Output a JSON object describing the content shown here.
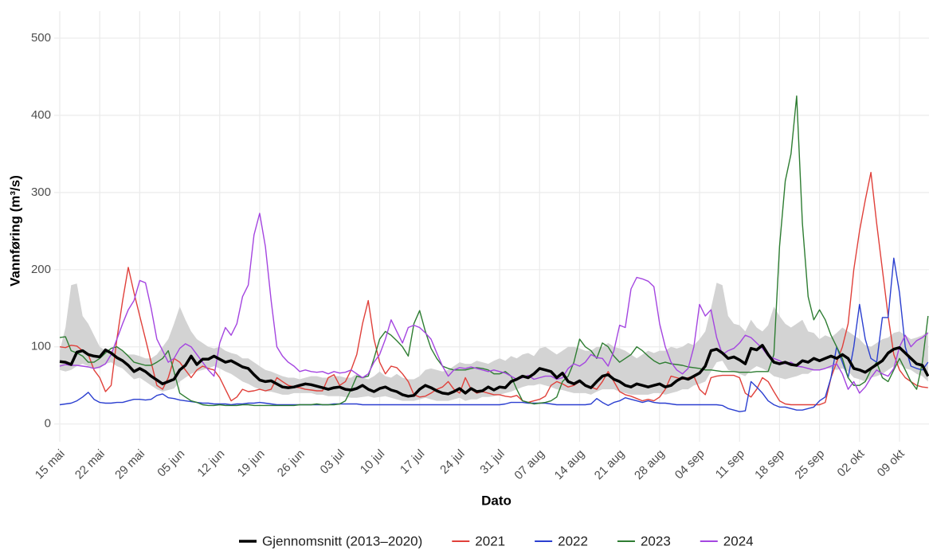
{
  "chart_data": {
    "type": "line",
    "ylabel": "Vannføring (m³/s)",
    "xlabel": "Dato",
    "categories": [
      "15 mai",
      null,
      null,
      null,
      null,
      null,
      null,
      "22 mai",
      null,
      null,
      null,
      null,
      null,
      null,
      "29 mai",
      null,
      null,
      null,
      null,
      null,
      null,
      "05 jun",
      null,
      null,
      null,
      null,
      null,
      null,
      "12 jun",
      null,
      null,
      null,
      null,
      null,
      null,
      "19 jun",
      null,
      null,
      null,
      null,
      null,
      null,
      "26 jun",
      null,
      null,
      null,
      null,
      null,
      null,
      "03 jul",
      null,
      null,
      null,
      null,
      null,
      null,
      "10 jul",
      null,
      null,
      null,
      null,
      null,
      null,
      "17 jul",
      null,
      null,
      null,
      null,
      null,
      null,
      "24 jul",
      null,
      null,
      null,
      null,
      null,
      null,
      "31 jul",
      null,
      null,
      null,
      null,
      null,
      null,
      "07 aug",
      null,
      null,
      null,
      null,
      null,
      null,
      "14 aug",
      null,
      null,
      null,
      null,
      null,
      null,
      "21 aug",
      null,
      null,
      null,
      null,
      null,
      null,
      "28 aug",
      null,
      null,
      null,
      null,
      null,
      null,
      "04 sep",
      null,
      null,
      null,
      null,
      null,
      null,
      "11 sep",
      null,
      null,
      null,
      null,
      null,
      null,
      "18 sep",
      null,
      null,
      null,
      null,
      null,
      null,
      "25 sep",
      null,
      null,
      null,
      null,
      null,
      null,
      "02 okt",
      null,
      null,
      null,
      null,
      null,
      null,
      "09 okt",
      null,
      null,
      null,
      null,
      null
    ],
    "ylim": [
      -23,
      535
    ],
    "yticks": [
      0,
      100,
      200,
      300,
      400,
      500
    ],
    "grid": true,
    "band": {
      "color": "#d3d3d3",
      "upper": [
        95,
        125,
        180,
        182,
        140,
        130,
        115,
        100,
        95,
        95,
        100,
        95,
        90,
        90,
        88,
        85,
        85,
        90,
        100,
        110,
        130,
        152,
        135,
        120,
        110,
        105,
        100,
        98,
        100,
        95,
        92,
        90,
        85,
        85,
        80,
        75,
        70,
        68,
        65,
        62,
        60,
        60,
        58,
        60,
        62,
        62,
        60,
        60,
        62,
        62,
        60,
        60,
        65,
        60,
        58,
        62,
        68,
        62,
        60,
        65,
        60,
        58,
        58,
        62,
        70,
        72,
        70,
        68,
        70,
        75,
        80,
        78,
        78,
        82,
        80,
        78,
        82,
        85,
        82,
        88,
        85,
        90,
        92,
        88,
        98,
        100,
        95,
        90,
        95,
        100,
        100,
        98,
        95,
        95,
        100,
        100,
        105,
        100,
        98,
        95,
        90,
        85,
        90,
        95,
        92,
        95,
        95,
        100,
        98,
        100,
        105,
        102,
        110,
        120,
        150,
        183,
        180,
        140,
        130,
        128,
        120,
        135,
        125,
        120,
        128,
        152,
        140,
        130,
        125,
        130,
        135,
        120,
        118,
        110,
        115,
        112,
        118,
        125,
        120,
        115,
        110,
        102,
        100,
        105,
        110,
        112,
        118,
        120,
        115,
        110,
        112,
        115,
        120
      ],
      "lower": [
        70,
        68,
        70,
        75,
        78,
        75,
        72,
        72,
        78,
        80,
        75,
        72,
        65,
        58,
        60,
        55,
        50,
        45,
        42,
        44,
        46,
        55,
        60,
        65,
        68,
        70,
        72,
        75,
        72,
        68,
        65,
        60,
        55,
        52,
        48,
        45,
        42,
        42,
        40,
        38,
        38,
        40,
        40,
        40,
        40,
        38,
        38,
        36,
        36,
        36,
        35,
        34,
        34,
        35,
        36,
        34,
        35,
        36,
        34,
        32,
        30,
        30,
        30,
        32,
        34,
        32,
        30,
        30,
        30,
        32,
        34,
        30,
        32,
        32,
        35,
        35,
        36,
        38,
        40,
        42,
        45,
        48,
        50,
        50,
        52,
        50,
        48,
        45,
        44,
        42,
        40,
        40,
        40,
        38,
        42,
        45,
        45,
        45,
        42,
        40,
        38,
        38,
        38,
        38,
        40,
        40,
        38,
        40,
        42,
        45,
        45,
        50,
        52,
        55,
        68,
        80,
        82,
        70,
        68,
        65,
        62,
        70,
        75,
        72,
        68,
        62,
        60,
        58,
        60,
        62,
        65,
        65,
        70,
        70,
        72,
        72,
        70,
        72,
        68,
        60,
        58,
        55,
        60,
        62,
        65,
        70,
        75,
        78,
        72,
        70,
        65,
        62,
        55
      ]
    },
    "series": [
      {
        "name": "Gjennomsnitt (2013–2020)",
        "color": "#000000",
        "values": [
          81,
          80,
          77,
          93,
          95,
          90,
          88,
          87,
          96,
          92,
          86,
          82,
          76,
          68,
          72,
          68,
          62,
          57,
          52,
          55,
          58,
          70,
          76,
          88,
          77,
          84,
          84,
          88,
          84,
          80,
          82,
          78,
          74,
          72,
          64,
          57,
          55,
          56,
          52,
          48,
          47,
          48,
          50,
          52,
          51,
          49,
          47,
          45,
          47,
          48,
          45,
          44,
          46,
          50,
          45,
          42,
          46,
          48,
          44,
          42,
          38,
          36,
          37,
          45,
          50,
          47,
          43,
          40,
          39,
          42,
          46,
          40,
          46,
          42,
          43,
          48,
          44,
          48,
          47,
          55,
          58,
          62,
          60,
          65,
          72,
          70,
          68,
          60,
          66,
          55,
          52,
          56,
          50,
          47,
          55,
          62,
          64,
          58,
          55,
          50,
          48,
          52,
          50,
          48,
          50,
          52,
          48,
          50,
          56,
          60,
          58,
          62,
          66,
          75,
          95,
          97,
          92,
          85,
          87,
          83,
          78,
          98,
          96,
          102,
          90,
          80,
          78,
          80,
          77,
          76,
          82,
          80,
          85,
          82,
          85,
          88,
          85,
          90,
          85,
          72,
          70,
          67,
          72,
          77,
          82,
          92,
          97,
          99,
          92,
          85,
          78,
          76,
          62
        ]
      },
      {
        "name": "2021",
        "color": "#e0403a",
        "values": [
          100,
          99,
          102,
          101,
          95,
          90,
          70,
          60,
          42,
          50,
          110,
          160,
          203,
          170,
          140,
          110,
          80,
          50,
          45,
          60,
          85,
          80,
          70,
          60,
          70,
          75,
          72,
          70,
          60,
          45,
          30,
          35,
          45,
          42,
          43,
          45,
          43,
          45,
          60,
          55,
          50,
          48,
          47,
          45,
          44,
          43,
          43,
          60,
          64,
          50,
          55,
          70,
          90,
          130,
          160,
          110,
          80,
          65,
          75,
          73,
          65,
          55,
          38,
          35,
          36,
          40,
          45,
          48,
          55,
          45,
          40,
          60,
          45,
          40,
          42,
          40,
          38,
          38,
          36,
          35,
          37,
          30,
          28,
          30,
          32,
          36,
          50,
          55,
          52,
          48,
          50,
          55,
          50,
          48,
          45,
          55,
          68,
          55,
          42,
          38,
          36,
          33,
          30,
          32,
          30,
          35,
          45,
          62,
          60,
          58,
          60,
          62,
          45,
          38,
          60,
          62,
          63,
          63,
          63,
          60,
          40,
          35,
          45,
          60,
          55,
          42,
          30,
          26,
          25,
          25,
          25,
          25,
          25,
          25,
          28,
          60,
          80,
          100,
          130,
          200,
          250,
          290,
          326,
          260,
          200,
          140,
          90,
          70,
          60,
          55,
          50,
          48,
          47
        ]
      },
      {
        "name": "2022",
        "color": "#2b3fd0",
        "values": [
          25,
          26,
          27,
          30,
          35,
          41,
          32,
          28,
          27,
          27,
          28,
          28,
          30,
          32,
          32,
          31,
          32,
          37,
          39,
          34,
          33,
          31,
          30,
          29,
          28,
          27,
          27,
          26,
          26,
          26,
          25,
          26,
          26,
          27,
          27,
          28,
          27,
          26,
          25,
          25,
          25,
          25,
          25,
          25,
          25,
          25,
          25,
          25,
          26,
          26,
          26,
          26,
          26,
          25,
          25,
          25,
          25,
          25,
          25,
          25,
          25,
          25,
          25,
          25,
          25,
          25,
          25,
          25,
          25,
          25,
          25,
          25,
          25,
          25,
          25,
          25,
          25,
          25,
          26,
          28,
          28,
          28,
          27,
          27,
          27,
          27,
          26,
          25,
          25,
          25,
          25,
          25,
          25,
          26,
          33,
          28,
          24,
          28,
          30,
          34,
          32,
          30,
          28,
          30,
          28,
          27,
          27,
          26,
          25,
          25,
          25,
          25,
          25,
          25,
          25,
          25,
          24,
          20,
          18,
          16,
          17,
          55,
          48,
          40,
          30,
          25,
          22,
          22,
          20,
          18,
          18,
          20,
          22,
          30,
          35,
          60,
          100,
          80,
          60,
          100,
          155,
          110,
          85,
          80,
          138,
          138,
          215,
          170,
          100,
          75,
          72,
          70,
          80
        ]
      },
      {
        "name": "2023",
        "color": "#2e7d32",
        "values": [
          112,
          113,
          95,
          92,
          88,
          80,
          80,
          85,
          92,
          98,
          100,
          95,
          88,
          80,
          78,
          76,
          76,
          80,
          85,
          95,
          68,
          40,
          35,
          30,
          28,
          25,
          24,
          24,
          25,
          24,
          24,
          24,
          25,
          25,
          24,
          24,
          24,
          24,
          24,
          24,
          24,
          24,
          25,
          25,
          25,
          26,
          25,
          25,
          25,
          26,
          30,
          45,
          62,
          60,
          62,
          85,
          110,
          120,
          115,
          108,
          100,
          88,
          130,
          147,
          120,
          98,
          85,
          75,
          72,
          70,
          70,
          70,
          72,
          73,
          72,
          70,
          65,
          65,
          68,
          62,
          45,
          30,
          28,
          26,
          27,
          28,
          30,
          35,
          55,
          62,
          80,
          110,
          100,
          95,
          85,
          105,
          100,
          88,
          80,
          85,
          90,
          100,
          95,
          88,
          82,
          78,
          80,
          78,
          77,
          76,
          74,
          73,
          72,
          70,
          70,
          69,
          68,
          68,
          68,
          67,
          67,
          67,
          68,
          68,
          68,
          90,
          230,
          315,
          350,
          425,
          260,
          165,
          135,
          148,
          135,
          115,
          100,
          85,
          60,
          50,
          50,
          55,
          70,
          80,
          60,
          55,
          70,
          85,
          70,
          55,
          45,
          80,
          140
        ]
      },
      {
        "name": "2024",
        "color": "#a445e0",
        "values": [
          75,
          77,
          76,
          76,
          75,
          74,
          72,
          74,
          78,
          90,
          110,
          130,
          148,
          160,
          186,
          183,
          150,
          110,
          95,
          80,
          85,
          98,
          104,
          100,
          90,
          80,
          70,
          62,
          105,
          125,
          115,
          130,
          165,
          180,
          245,
          273,
          230,
          160,
          100,
          88,
          80,
          75,
          68,
          70,
          68,
          67,
          68,
          65,
          68,
          66,
          67,
          70,
          65,
          60,
          65,
          80,
          90,
          110,
          135,
          120,
          105,
          125,
          128,
          125,
          118,
          110,
          92,
          75,
          62,
          70,
          73,
          72,
          74,
          72,
          70,
          68,
          70,
          68,
          66,
          62,
          58,
          60,
          63,
          58,
          60,
          62,
          62,
          58,
          60,
          72,
          78,
          75,
          80,
          90,
          86,
          85,
          75,
          95,
          128,
          125,
          175,
          190,
          188,
          185,
          178,
          130,
          100,
          80,
          70,
          65,
          72,
          100,
          155,
          140,
          148,
          112,
          90,
          95,
          98,
          105,
          115,
          112,
          105,
          98,
          88,
          85,
          82,
          78,
          80,
          75,
          74,
          72,
          70,
          70,
          72,
          75,
          78,
          65,
          45,
          55,
          40,
          48,
          60,
          70,
          65,
          62,
          72,
          100,
          115,
          100,
          108,
          112,
          118
        ]
      }
    ]
  }
}
